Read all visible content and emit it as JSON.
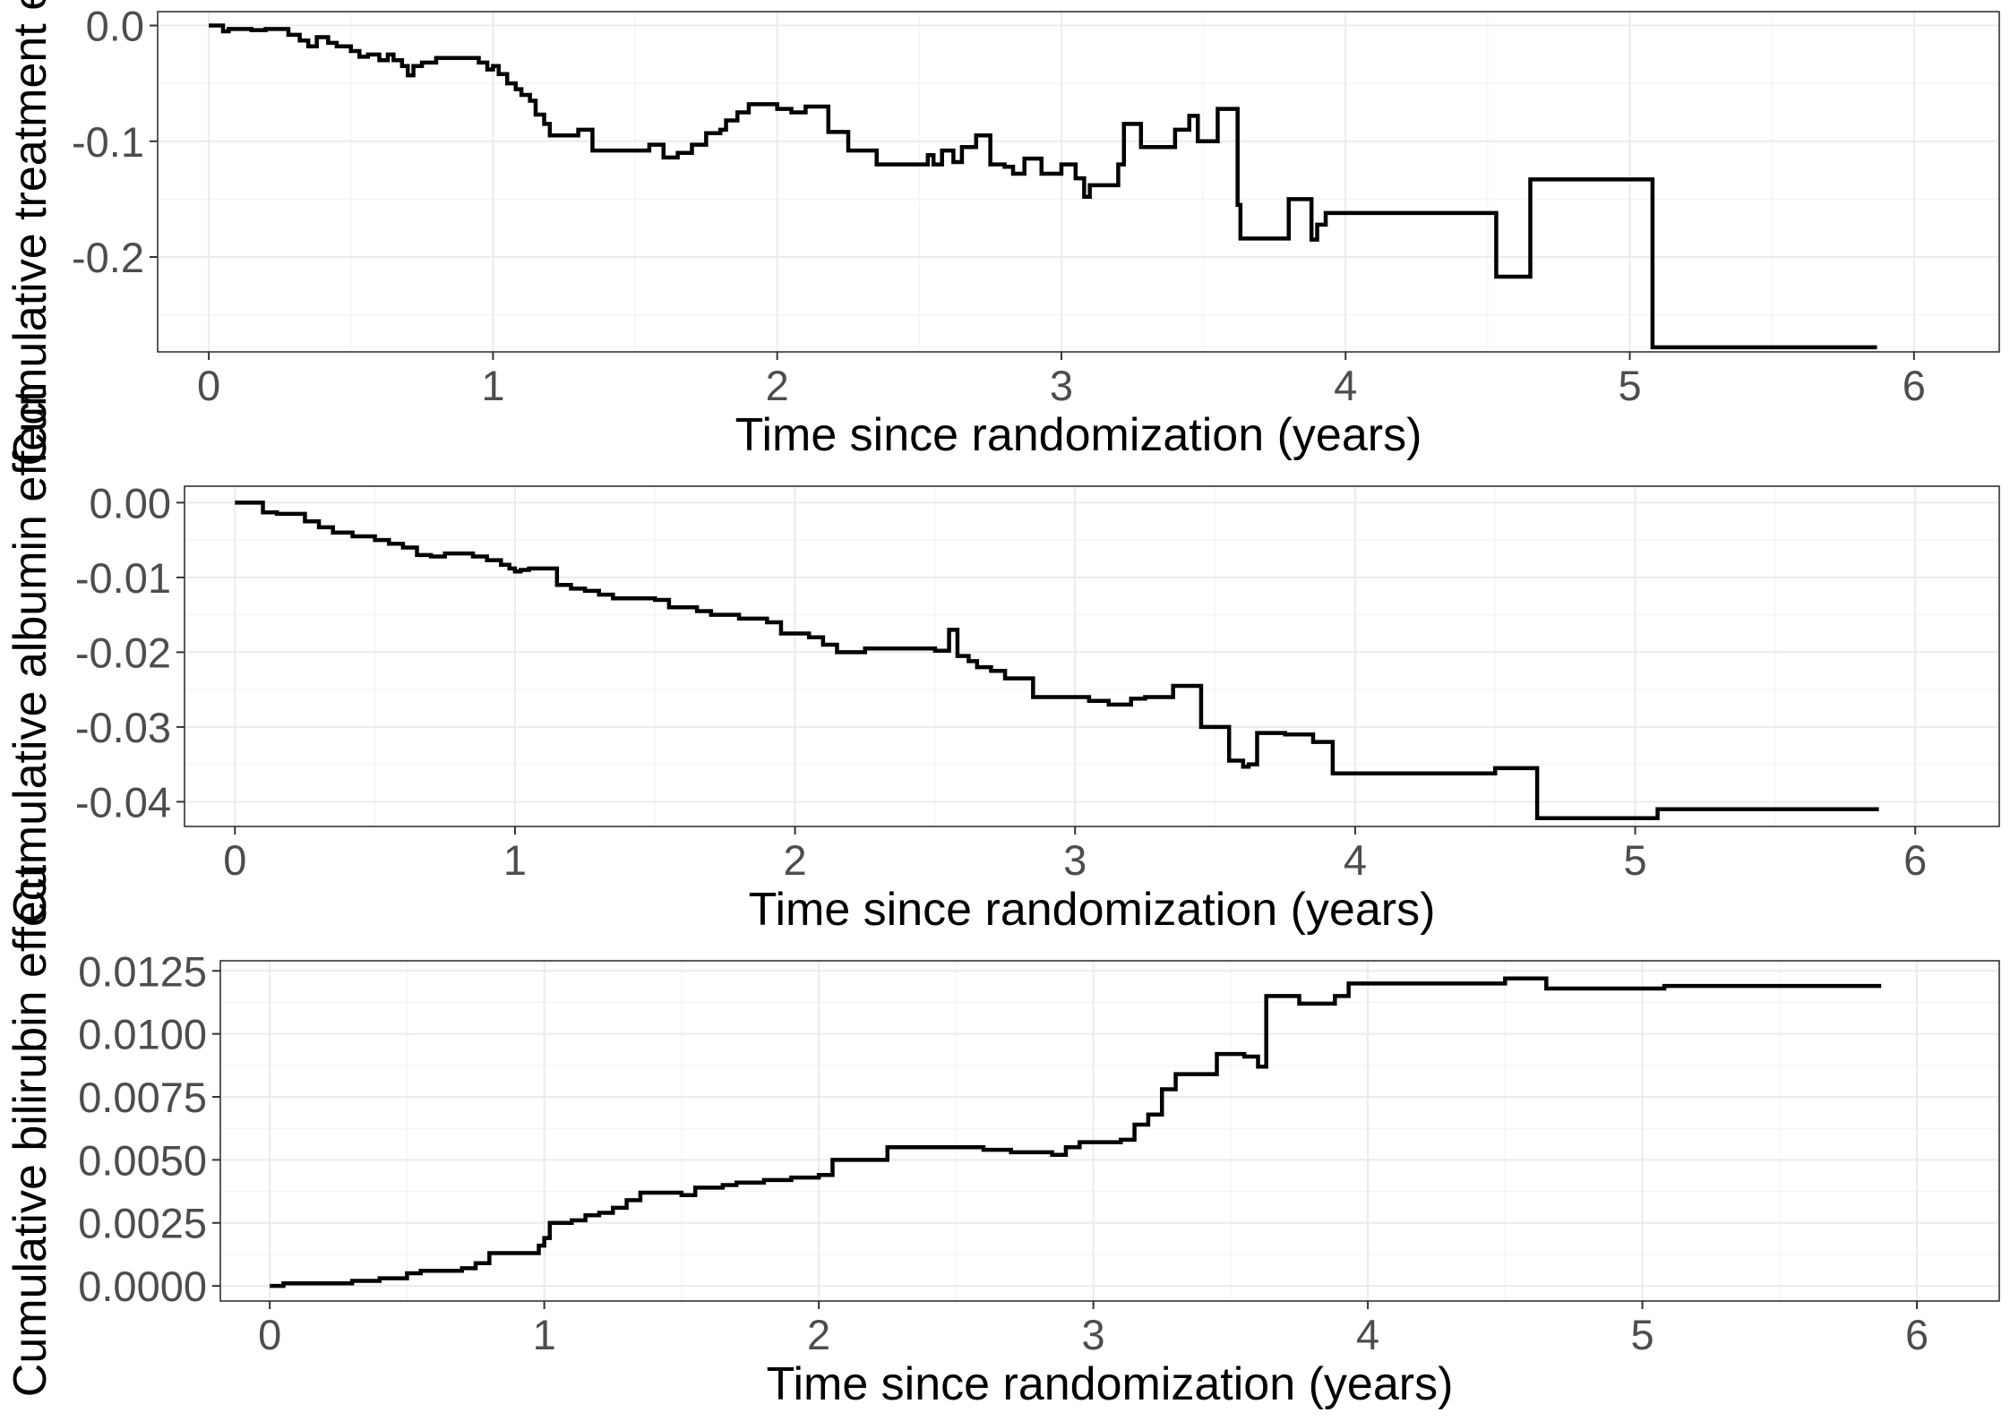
{
  "chart_data": [
    {
      "type": "line",
      "step": true,
      "xlabel": "Time since randomization (years)",
      "ylabel": "Cumulative treatment effect",
      "xlim": [
        -0.18,
        6.3
      ],
      "ylim": [
        -0.282,
        0.012
      ],
      "xticks": [
        0,
        1,
        2,
        3,
        4,
        5,
        6
      ],
      "xtick_labels": [
        "0",
        "1",
        "2",
        "3",
        "4",
        "5",
        "6"
      ],
      "yticks": [
        0.0,
        -0.1,
        -0.2
      ],
      "ytick_labels": [
        "0.0",
        "-0.1",
        "-0.2"
      ],
      "grid": true,
      "series": [
        {
          "color": "#000000",
          "x": [
            0.0,
            0.05,
            0.07,
            0.12,
            0.15,
            0.2,
            0.28,
            0.32,
            0.35,
            0.38,
            0.42,
            0.45,
            0.5,
            0.53,
            0.56,
            0.6,
            0.63,
            0.65,
            0.68,
            0.7,
            0.72,
            0.75,
            0.8,
            0.85,
            0.9,
            0.95,
            0.98,
            1.0,
            1.02,
            1.05,
            1.08,
            1.1,
            1.13,
            1.15,
            1.18,
            1.2,
            1.25,
            1.3,
            1.35,
            1.42,
            1.55,
            1.6,
            1.65,
            1.7,
            1.75,
            1.8,
            1.82,
            1.86,
            1.9,
            2.0,
            2.05,
            2.1,
            2.18,
            2.25,
            2.35,
            2.45,
            2.53,
            2.55,
            2.58,
            2.62,
            2.65,
            2.7,
            2.75,
            2.8,
            2.83,
            2.87,
            2.93,
            3.0,
            3.05,
            3.08,
            3.1,
            3.2,
            3.22,
            3.28,
            3.4,
            3.45,
            3.48,
            3.55,
            3.62,
            3.63,
            3.8,
            3.88,
            3.9,
            3.93,
            4.53,
            4.65,
            5.08,
            5.87
          ],
          "y": [
            0.0,
            -0.005,
            -0.003,
            -0.003,
            -0.004,
            -0.003,
            -0.008,
            -0.013,
            -0.018,
            -0.01,
            -0.015,
            -0.018,
            -0.022,
            -0.027,
            -0.025,
            -0.03,
            -0.025,
            -0.03,
            -0.035,
            -0.043,
            -0.035,
            -0.032,
            -0.028,
            -0.028,
            -0.028,
            -0.032,
            -0.038,
            -0.035,
            -0.042,
            -0.05,
            -0.055,
            -0.06,
            -0.065,
            -0.077,
            -0.085,
            -0.095,
            -0.095,
            -0.09,
            -0.108,
            -0.108,
            -0.103,
            -0.114,
            -0.11,
            -0.103,
            -0.093,
            -0.09,
            -0.082,
            -0.075,
            -0.068,
            -0.072,
            -0.075,
            -0.07,
            -0.092,
            -0.108,
            -0.12,
            -0.12,
            -0.112,
            -0.12,
            -0.108,
            -0.118,
            -0.105,
            -0.095,
            -0.12,
            -0.122,
            -0.128,
            -0.115,
            -0.128,
            -0.12,
            -0.132,
            -0.148,
            -0.138,
            -0.12,
            -0.085,
            -0.105,
            -0.09,
            -0.078,
            -0.1,
            -0.072,
            -0.155,
            -0.184,
            -0.15,
            -0.185,
            -0.172,
            -0.162,
            -0.217,
            -0.133,
            -0.278,
            -0.278
          ]
        }
      ]
    },
    {
      "type": "line",
      "step": true,
      "xlabel": "Time since randomization (years)",
      "ylabel": "Cumulative albumin effect",
      "xlim": [
        -0.18,
        6.3
      ],
      "ylim": [
        -0.0433,
        0.0022
      ],
      "xticks": [
        0,
        1,
        2,
        3,
        4,
        5,
        6
      ],
      "xtick_labels": [
        "0",
        "1",
        "2",
        "3",
        "4",
        "5",
        "6"
      ],
      "yticks": [
        0.0,
        -0.01,
        -0.02,
        -0.03,
        -0.04
      ],
      "ytick_labels": [
        "0.00",
        "-0.01",
        "-0.02",
        "-0.03",
        "-0.04"
      ],
      "grid": true,
      "series": [
        {
          "color": "#000000",
          "x": [
            0.0,
            0.1,
            0.15,
            0.25,
            0.3,
            0.35,
            0.42,
            0.5,
            0.55,
            0.6,
            0.65,
            0.7,
            0.75,
            0.8,
            0.85,
            0.9,
            0.95,
            0.98,
            1.0,
            1.02,
            1.05,
            1.15,
            1.2,
            1.25,
            1.3,
            1.35,
            1.4,
            1.5,
            1.55,
            1.65,
            1.7,
            1.8,
            1.9,
            1.95,
            2.05,
            2.1,
            2.15,
            2.25,
            2.5,
            2.55,
            2.58,
            2.62,
            2.65,
            2.7,
            2.75,
            2.8,
            2.85,
            2.95,
            3.05,
            3.12,
            3.2,
            3.25,
            3.35,
            3.45,
            3.55,
            3.6,
            3.62,
            3.65,
            3.75,
            3.85,
            3.92,
            4.5,
            4.65,
            5.08,
            5.87
          ],
          "y": [
            0.0,
            -0.0013,
            -0.0015,
            -0.0025,
            -0.0033,
            -0.004,
            -0.0045,
            -0.005,
            -0.0055,
            -0.006,
            -0.007,
            -0.0072,
            -0.0068,
            -0.0068,
            -0.0072,
            -0.0077,
            -0.0083,
            -0.0088,
            -0.0092,
            -0.009,
            -0.0088,
            -0.011,
            -0.0115,
            -0.0118,
            -0.0123,
            -0.0128,
            -0.0128,
            -0.013,
            -0.014,
            -0.0145,
            -0.015,
            -0.0155,
            -0.016,
            -0.0175,
            -0.018,
            -0.019,
            -0.02,
            -0.0195,
            -0.0198,
            -0.017,
            -0.0205,
            -0.0212,
            -0.022,
            -0.0225,
            -0.0235,
            -0.0235,
            -0.026,
            -0.026,
            -0.0265,
            -0.027,
            -0.0262,
            -0.026,
            -0.0245,
            -0.03,
            -0.0345,
            -0.0353,
            -0.035,
            -0.0308,
            -0.031,
            -0.032,
            -0.0362,
            -0.0355,
            -0.0422,
            -0.041,
            -0.041
          ]
        }
      ]
    },
    {
      "type": "line",
      "step": true,
      "xlabel": "Time since randomization (years)",
      "ylabel": "Cumulative bilirubin effect",
      "xlim": [
        -0.18,
        6.3
      ],
      "ylim": [
        -0.0006,
        0.0129
      ],
      "xticks": [
        0,
        1,
        2,
        3,
        4,
        5,
        6
      ],
      "xtick_labels": [
        "0",
        "1",
        "2",
        "3",
        "4",
        "5",
        "6"
      ],
      "yticks": [
        0.0,
        0.0025,
        0.005,
        0.0075,
        0.01,
        0.0125
      ],
      "ytick_labels": [
        "0.0000",
        "0.0025",
        "0.0050",
        "0.0075",
        "0.0100",
        "0.0125"
      ],
      "grid": true,
      "series": [
        {
          "color": "#000000",
          "x": [
            0.0,
            0.05,
            0.1,
            0.3,
            0.4,
            0.5,
            0.55,
            0.7,
            0.75,
            0.8,
            0.9,
            0.95,
            0.98,
            1.0,
            1.02,
            1.1,
            1.15,
            1.2,
            1.25,
            1.3,
            1.35,
            1.4,
            1.5,
            1.55,
            1.65,
            1.7,
            1.8,
            1.85,
            1.9,
            2.0,
            2.05,
            2.1,
            2.25,
            2.4,
            2.5,
            2.6,
            2.7,
            2.8,
            2.85,
            2.9,
            2.95,
            3.05,
            3.1,
            3.15,
            3.2,
            3.25,
            3.3,
            3.35,
            3.45,
            3.55,
            3.6,
            3.63,
            3.75,
            3.88,
            3.93,
            4.5,
            4.65,
            4.9,
            5.08,
            5.87
          ],
          "y": [
            0.0,
            0.0001,
            0.0001,
            0.0002,
            0.0003,
            0.0005,
            0.0006,
            0.0007,
            0.0009,
            0.0013,
            0.0013,
            0.0013,
            0.0016,
            0.0019,
            0.0025,
            0.0026,
            0.0028,
            0.0029,
            0.0031,
            0.0034,
            0.0037,
            0.0037,
            0.0036,
            0.0039,
            0.004,
            0.0041,
            0.0042,
            0.0042,
            0.0043,
            0.0044,
            0.005,
            0.005,
            0.0055,
            0.0055,
            0.0055,
            0.0054,
            0.0053,
            0.0053,
            0.0052,
            0.0055,
            0.0057,
            0.0057,
            0.0058,
            0.0064,
            0.0068,
            0.0078,
            0.0084,
            0.0084,
            0.0092,
            0.0091,
            0.0087,
            0.0115,
            0.0112,
            0.0115,
            0.012,
            0.0122,
            0.0118,
            0.0118,
            0.0119,
            0.0119
          ]
        }
      ]
    }
  ]
}
